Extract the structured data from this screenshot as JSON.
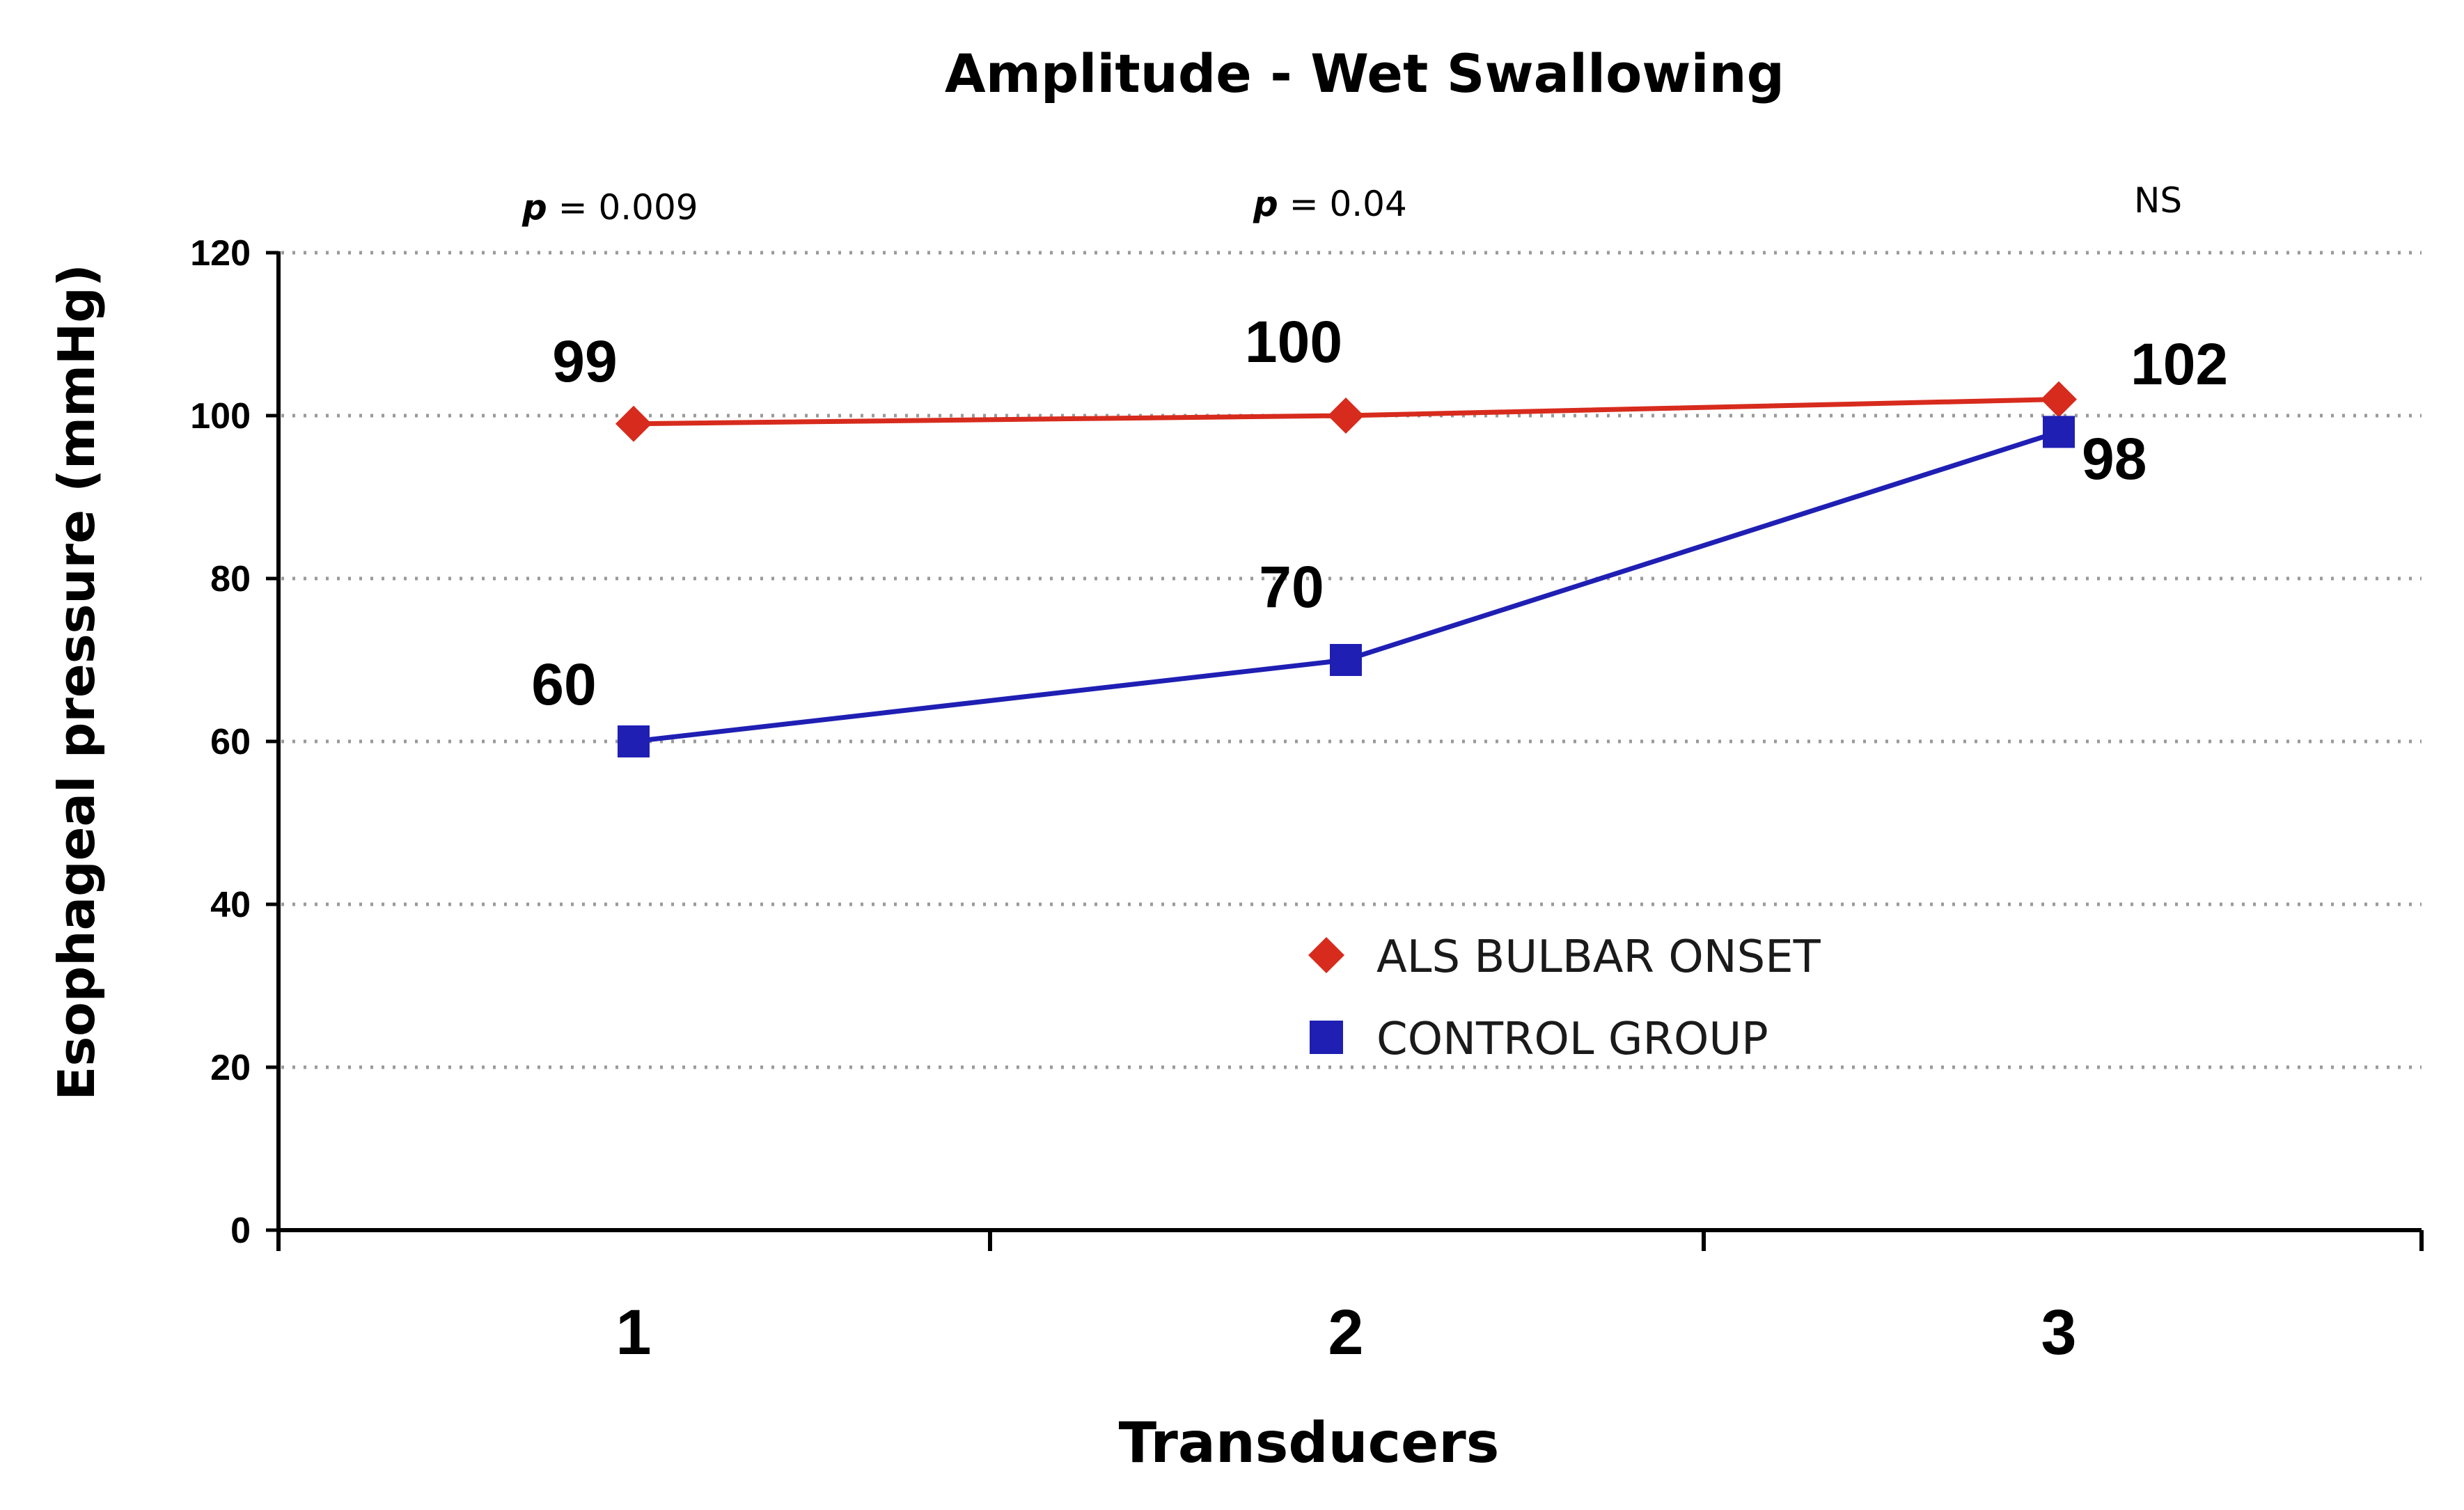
{
  "chart_data": {
    "type": "line",
    "title": "Amplitude - Wet Swallowing",
    "xlabel": "Transducers",
    "ylabel": "Esophageal pressure (mmHg)",
    "categories": [
      "1",
      "2",
      "3"
    ],
    "ylim": [
      0,
      120
    ],
    "yticks": [
      0,
      20,
      40,
      60,
      80,
      100,
      120
    ],
    "grid": true,
    "series": [
      {
        "name": "ALS BULBAR ONSET",
        "values": [
          99,
          100,
          102
        ],
        "labels": [
          "99",
          "100",
          "102"
        ],
        "color": "#d72b1d",
        "marker": "diamond"
      },
      {
        "name": "CONTROL GROUP",
        "values": [
          60,
          70,
          98
        ],
        "labels": [
          "60",
          "70",
          "98"
        ],
        "color": "#1f1fb4",
        "marker": "square"
      }
    ],
    "annotations": [
      {
        "prefix": "p",
        "text": " = 0.009",
        "category": "1"
      },
      {
        "prefix": "p",
        "text": " = 0.04",
        "category": "2"
      },
      {
        "prefix": "",
        "text": "NS",
        "category": "3"
      }
    ],
    "legend_position": "center"
  }
}
